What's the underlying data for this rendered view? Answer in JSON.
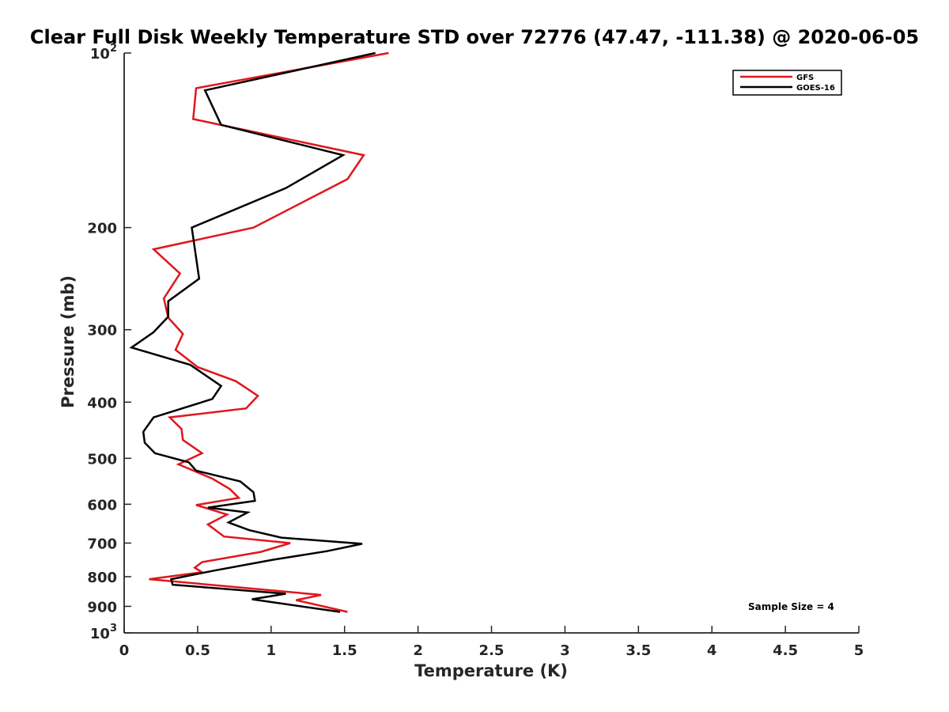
{
  "chart_data": {
    "type": "line",
    "title": "Clear Full Disk Weekly Temperature STD over 72776 (47.47, -111.38) @ 2020-06-05",
    "xlabel": "Temperature (K)",
    "ylabel": "Pressure (mb)",
    "xlim": [
      0,
      5
    ],
    "ylim": [
      100,
      1000
    ],
    "yscale": "log",
    "y_reversed": true,
    "grid": false,
    "legend_position": "top-right",
    "x_ticks": [
      "0",
      "0.5",
      "1",
      "1.5",
      "2",
      "2.5",
      "3",
      "3.5",
      "4",
      "4.5",
      "5"
    ],
    "x_tick_values": [
      0,
      0.5,
      1,
      1.5,
      2,
      2.5,
      3,
      3.5,
      4,
      4.5,
      5
    ],
    "y_ticks": [
      {
        "value": 100,
        "base": "10",
        "exp": "2"
      },
      {
        "value": 200,
        "label": "200"
      },
      {
        "value": 300,
        "label": "300"
      },
      {
        "value": 400,
        "label": "400"
      },
      {
        "value": 500,
        "label": "500"
      },
      {
        "value": 600,
        "label": "600"
      },
      {
        "value": 700,
        "label": "700"
      },
      {
        "value": 800,
        "label": "800"
      },
      {
        "value": 900,
        "label": "900"
      },
      {
        "value": 1000,
        "base": "10",
        "exp": "3"
      }
    ],
    "annotation": "Sample Size = 4",
    "series": [
      {
        "name": "GFS",
        "color": "#e0161c",
        "points": [
          [
            1.8,
            100
          ],
          [
            0.49,
            115
          ],
          [
            0.47,
            130
          ],
          [
            1.63,
            150
          ],
          [
            1.52,
            165
          ],
          [
            0.88,
            200
          ],
          [
            0.2,
            218
          ],
          [
            0.38,
            240
          ],
          [
            0.27,
            265
          ],
          [
            0.3,
            286
          ],
          [
            0.4,
            305
          ],
          [
            0.35,
            325
          ],
          [
            0.5,
            348
          ],
          [
            0.76,
            368
          ],
          [
            0.91,
            390
          ],
          [
            0.83,
            410
          ],
          [
            0.31,
            425
          ],
          [
            0.39,
            445
          ],
          [
            0.4,
            465
          ],
          [
            0.53,
            490
          ],
          [
            0.37,
            512
          ],
          [
            0.6,
            542
          ],
          [
            0.72,
            565
          ],
          [
            0.78,
            585
          ],
          [
            0.49,
            602
          ],
          [
            0.7,
            625
          ],
          [
            0.57,
            650
          ],
          [
            0.68,
            682
          ],
          [
            1.13,
            700
          ],
          [
            0.93,
            725
          ],
          [
            0.53,
            755
          ],
          [
            0.48,
            772
          ],
          [
            0.53,
            786
          ],
          [
            0.17,
            808
          ],
          [
            1.34,
            860
          ],
          [
            1.17,
            878
          ],
          [
            1.52,
            920
          ]
        ]
      },
      {
        "name": "GOES-16",
        "color": "#000000",
        "points": [
          [
            1.71,
            100
          ],
          [
            0.55,
            116
          ],
          [
            0.66,
            133
          ],
          [
            1.49,
            150
          ],
          [
            1.1,
            171
          ],
          [
            0.46,
            200
          ],
          [
            0.51,
            245
          ],
          [
            0.3,
            268
          ],
          [
            0.3,
            285
          ],
          [
            0.2,
            303
          ],
          [
            0.05,
            322
          ],
          [
            0.45,
            345
          ],
          [
            0.66,
            375
          ],
          [
            0.6,
            395
          ],
          [
            0.2,
            425
          ],
          [
            0.13,
            450
          ],
          [
            0.14,
            470
          ],
          [
            0.21,
            490
          ],
          [
            0.44,
            508
          ],
          [
            0.49,
            525
          ],
          [
            0.79,
            548
          ],
          [
            0.88,
            572
          ],
          [
            0.89,
            592
          ],
          [
            0.57,
            608
          ],
          [
            0.84,
            620
          ],
          [
            0.71,
            645
          ],
          [
            0.85,
            665
          ],
          [
            1.07,
            685
          ],
          [
            1.62,
            702
          ],
          [
            1.38,
            723
          ],
          [
            1.01,
            748
          ],
          [
            0.6,
            782
          ],
          [
            0.32,
            808
          ],
          [
            0.33,
            826
          ],
          [
            1.1,
            856
          ],
          [
            0.87,
            875
          ],
          [
            1.47,
            920
          ]
        ]
      }
    ]
  }
}
